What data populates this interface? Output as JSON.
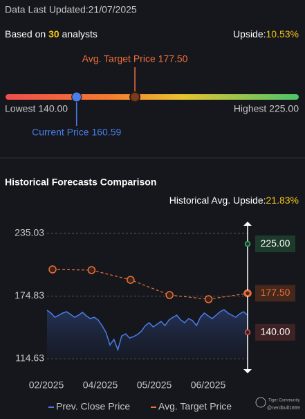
{
  "header": {
    "updated": "Data Last Updated:21/07/2025"
  },
  "summary": {
    "prefix": "Based on",
    "analysts": 30,
    "suffix": "analysts",
    "upside_label": "Upside:",
    "upside": "10.53%"
  },
  "price_range": {
    "lowest": 140,
    "lowest_label": "Lowest 140.00",
    "highest": 225,
    "highest_label": "Highest 225.00",
    "current": 160.59,
    "current_label": "Current Price 160.59",
    "avg_target": 177.5,
    "avg_target_label": "Avg. Target Price 177.50"
  },
  "chart_data": {
    "type": "line",
    "title": "Historical Forecasts Comparison",
    "subtitle_label": "Historical Avg. Upside:",
    "subtitle_value": "21.83%",
    "ylim": [
      114.63,
      235.03
    ],
    "yticks": [
      114.63,
      174.83,
      235.03
    ],
    "grid": true,
    "xticks": [
      "02/2025",
      "04/2025",
      "05/2025",
      "06/2025"
    ],
    "series": [
      {
        "name": "Prev. Close Price",
        "color": "#4a7de8",
        "values": [
          161.2,
          158.5,
          154.5,
          156.5,
          158.5,
          159.8,
          157.2,
          154.5,
          156.5,
          159.2,
          155.8,
          153.2,
          154.5,
          151.9,
          146.5,
          139.9,
          127.9,
          133.2,
          123.2,
          136.5,
          138.5,
          134.5,
          135.9,
          137.9,
          141.2,
          146.5,
          149.2,
          145.2,
          147.8,
          150.5,
          146.5,
          151.9,
          154.5,
          156.5,
          151.9,
          149.2,
          153.2,
          151.2,
          146.5,
          154.5,
          158.5,
          155.8,
          153.2,
          156.5,
          159.8,
          161.8,
          158.5,
          156.5,
          154.5,
          157.8,
          159.8,
          156.5
        ]
      },
      {
        "name": "Avg. Target Price",
        "color": "#f0703a",
        "dashed": true,
        "values": [
          200.4,
          199.8,
          190.4,
          175.8,
          171.8,
          177.5
        ]
      }
    ],
    "markers": [
      {
        "value": 225,
        "label": "225.00",
        "color": "#3fae6a",
        "bg": "#1d3b2a"
      },
      {
        "value": 177.5,
        "label": "177.50",
        "color": "#f0703a",
        "bg": "#44281c"
      },
      {
        "value": 140,
        "label": "140.00",
        "color": "#d9534f",
        "bg": "#3f2224"
      }
    ]
  },
  "watermark": {
    "brand": "Tiger Community",
    "user": "@nerdbull1669"
  }
}
